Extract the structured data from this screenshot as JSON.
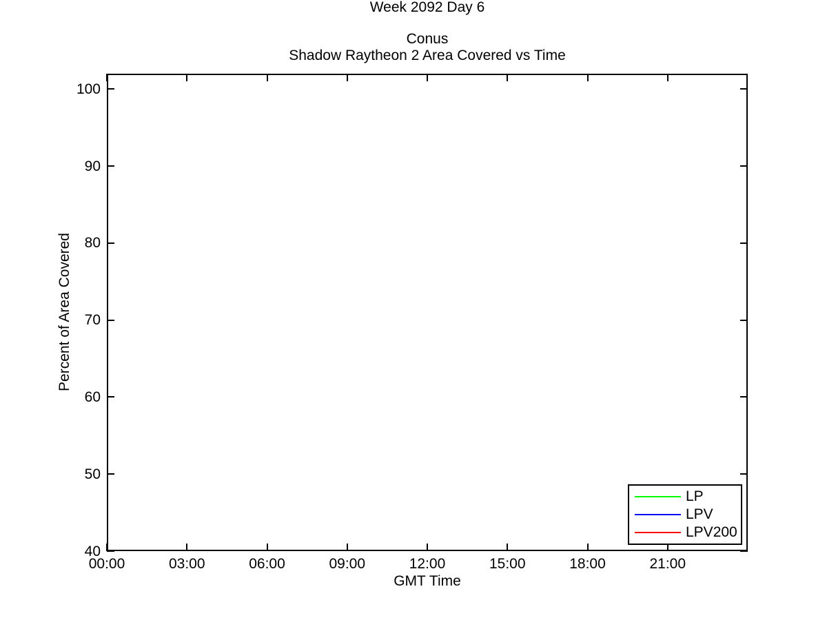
{
  "figure": {
    "background": "#ffffff",
    "axis_color": "#000000",
    "text_color": "#000000"
  },
  "chart_data": {
    "type": "line",
    "suptitle": "Week 2092 Day 6",
    "title": "Conus",
    "subtitle": "Shadow Raytheon 2 Area Covered vs Time",
    "xlabel": "GMT Time",
    "ylabel": "Percent of Area Covered",
    "xlim": [
      0,
      24
    ],
    "ylim": [
      40,
      102
    ],
    "grid": false,
    "x_ticks": [
      {
        "value": 0,
        "label": "00:00"
      },
      {
        "value": 3,
        "label": "03:00"
      },
      {
        "value": 6,
        "label": "06:00"
      },
      {
        "value": 9,
        "label": "09:00"
      },
      {
        "value": 12,
        "label": "12:00"
      },
      {
        "value": 15,
        "label": "15:00"
      },
      {
        "value": 18,
        "label": "18:00"
      },
      {
        "value": 21,
        "label": "21:00"
      }
    ],
    "y_ticks": [
      {
        "value": 40,
        "label": "40"
      },
      {
        "value": 50,
        "label": "50"
      },
      {
        "value": 60,
        "label": "60"
      },
      {
        "value": 70,
        "label": "70"
      },
      {
        "value": 80,
        "label": "80"
      },
      {
        "value": 90,
        "label": "90"
      },
      {
        "value": 100,
        "label": "100"
      }
    ],
    "legend_position": "bottom-right",
    "series": [
      {
        "name": "LP",
        "color": "#00ff00",
        "x": [],
        "y": []
      },
      {
        "name": "LPV",
        "color": "#0000ff",
        "x": [],
        "y": []
      },
      {
        "name": "LPV200",
        "color": "#ff0000",
        "x": [],
        "y": []
      }
    ]
  }
}
